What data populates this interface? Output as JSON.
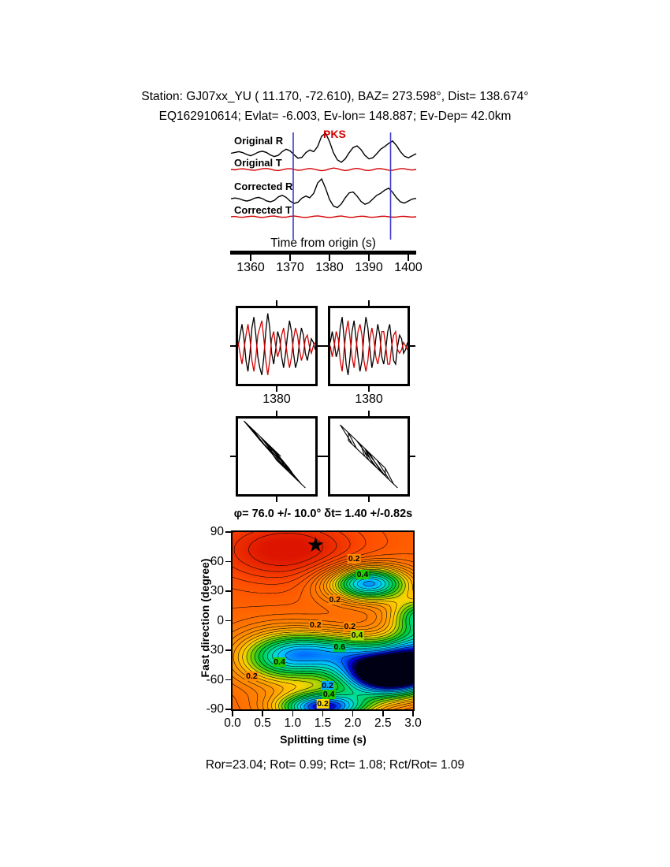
{
  "header": {
    "line1": "Station: GJ07xx_YU ( 11.170, -72.610), BAZ= 273.598°, Dist= 138.674°",
    "line2": "EQ162910614; Evlat= -6.003, Ev-lon= 148.887; Ev-Dep= 42.0km"
  },
  "footer": {
    "stats": "Ror=23.04; Rot= 0.99; Rct= 1.08; Rct/Rot= 1.09"
  },
  "chart_data": [
    {
      "id": "seismogram-traces",
      "type": "line",
      "phase": "PKS",
      "xlabel": "Time from origin (s)",
      "xlim": [
        1355,
        1402
      ],
      "xticks": [
        "1360",
        "1370",
        "1380",
        "1390",
        "1400"
      ],
      "window_lines": [
        1370.8,
        1395.5
      ],
      "series": [
        {
          "name": "Original R",
          "color": "#000000",
          "values": [
            0.02,
            0.06,
            0.1,
            0.05,
            -0.04,
            -0.1,
            -0.02,
            0.08,
            0.12,
            0.06,
            -0.06,
            -0.14,
            -0.08,
            0.1,
            0.22,
            0.14,
            -0.05,
            -0.22,
            -0.18,
            0.05,
            0.18,
            0.1,
            0.35,
            0.85,
            1.0,
            0.6,
            0.05,
            -0.3,
            -0.42,
            -0.25,
            0.05,
            0.3,
            0.38,
            0.2,
            -0.08,
            -0.25,
            -0.2,
            0.0,
            0.22,
            0.35,
            0.5,
            0.62,
            0.4,
            0.1,
            -0.12,
            -0.2,
            -0.1,
            0.0
          ]
        },
        {
          "name": "Original T",
          "color": "#d40000",
          "values": [
            0.0,
            -0.06,
            0.04,
            0.1,
            0.02,
            -0.08,
            -0.12,
            -0.02,
            0.1,
            0.14,
            0.04,
            -0.1,
            -0.16,
            -0.06,
            0.08,
            0.12,
            0.0,
            -0.12,
            -0.08,
            0.06,
            0.14,
            0.06,
            -0.08,
            -0.18,
            -0.1,
            0.08,
            0.2,
            0.12,
            -0.06,
            -0.16,
            -0.08,
            0.08,
            0.16,
            0.06,
            -0.1,
            -0.14,
            -0.04,
            0.1,
            0.12,
            0.02,
            -0.1,
            -0.12,
            0.0,
            0.12,
            0.1,
            -0.02,
            -0.08,
            0.0
          ]
        },
        {
          "name": "Corrected R",
          "color": "#000000",
          "values": [
            0.03,
            0.07,
            0.04,
            -0.03,
            -0.08,
            -0.03,
            0.06,
            0.1,
            0.04,
            -0.07,
            -0.12,
            -0.05,
            0.12,
            0.2,
            0.1,
            -0.08,
            -0.2,
            -0.14,
            0.06,
            0.16,
            0.08,
            0.3,
            0.8,
            1.0,
            0.55,
            0.0,
            -0.32,
            -0.4,
            -0.22,
            0.08,
            0.32,
            0.36,
            0.16,
            -0.1,
            -0.24,
            -0.16,
            0.02,
            0.2,
            0.3,
            0.45,
            0.55,
            0.35,
            0.08,
            -0.12,
            -0.18,
            -0.08,
            0.02,
            0.05
          ]
        },
        {
          "name": "Corrected T",
          "color": "#d40000",
          "values": [
            0.0,
            0.04,
            -0.04,
            -0.08,
            0.0,
            0.08,
            0.05,
            -0.05,
            -0.1,
            -0.02,
            0.08,
            0.1,
            0.0,
            -0.08,
            -0.06,
            0.05,
            0.1,
            0.03,
            -0.07,
            -0.1,
            -0.02,
            0.08,
            0.12,
            0.04,
            -0.06,
            -0.1,
            -0.04,
            0.06,
            0.1,
            0.02,
            -0.08,
            -0.08,
            0.02,
            0.08,
            0.06,
            -0.04,
            -0.08,
            -0.02,
            0.06,
            0.08,
            0.0,
            -0.06,
            -0.04,
            0.04,
            0.06,
            0.0,
            -0.05,
            0.0
          ]
        }
      ]
    },
    {
      "id": "fast-slow-window-pair",
      "type": "line",
      "panels": [
        {
          "xtick": "1380",
          "series": [
            {
              "color": "#000000",
              "values": [
                0.0,
                0.3,
                0.6,
                0.2,
                -0.4,
                -0.7,
                -0.2,
                0.5,
                0.8,
                0.3,
                -0.3,
                -0.6,
                -0.8,
                -0.3,
                0.4,
                0.9,
                0.5,
                -0.2,
                -0.5,
                -0.1,
                0.4,
                0.2,
                -0.3,
                -0.6,
                -0.2,
                0.3,
                0.7,
                0.4,
                -0.2,
                -0.6,
                -0.4,
                0.1,
                0.5,
                0.3,
                -0.2,
                -0.4,
                -0.1,
                0.2,
                0.1,
                -0.1
              ]
            },
            {
              "color": "#d40000",
              "values": [
                0.1,
                -0.2,
                -0.5,
                -0.1,
                0.3,
                0.6,
                0.2,
                -0.4,
                -0.7,
                -0.3,
                0.3,
                0.5,
                0.7,
                0.2,
                -0.4,
                -0.8,
                -0.4,
                0.2,
                0.4,
                0.0,
                -0.3,
                -0.1,
                0.3,
                0.5,
                0.1,
                -0.3,
                -0.6,
                -0.3,
                0.2,
                0.5,
                0.3,
                -0.1,
                -0.4,
                -0.2,
                0.2,
                0.3,
                0.0,
                -0.2,
                0.0,
                0.1
              ]
            }
          ]
        },
        {
          "xtick": "1380",
          "series": [
            {
              "color": "#000000",
              "values": [
                0.1,
                0.4,
                0.1,
                -0.3,
                -0.1,
                0.5,
                0.8,
                0.2,
                -0.5,
                -0.8,
                -0.3,
                0.4,
                0.7,
                0.2,
                -0.3,
                -0.7,
                -0.4,
                0.3,
                0.8,
                0.5,
                -0.1,
                -0.6,
                -0.3,
                0.2,
                0.6,
                0.3,
                -0.3,
                -0.5,
                -0.1,
                0.4,
                0.6,
                0.1,
                -0.4,
                -0.5,
                0.0,
                0.3,
                0.2,
                -0.2,
                -0.1,
                0.1
              ]
            },
            {
              "color": "#d40000",
              "values": [
                0.0,
                -0.3,
                0.0,
                0.4,
                0.2,
                -0.4,
                -0.7,
                -0.1,
                0.4,
                0.7,
                0.2,
                -0.3,
                -0.6,
                -0.1,
                0.4,
                0.6,
                0.3,
                -0.4,
                -0.7,
                -0.4,
                0.2,
                0.5,
                0.2,
                -0.3,
                -0.5,
                -0.2,
                0.4,
                0.4,
                0.0,
                -0.5,
                -0.5,
                0.0,
                0.3,
                0.4,
                -0.1,
                -0.2,
                -0.1,
                0.1,
                0.0,
                -0.1
              ]
            }
          ]
        }
      ]
    },
    {
      "id": "particle-motion",
      "type": "line",
      "note": "particle motion: T component vs R component of each window panel"
    },
    {
      "id": "splitting-misfit-surface",
      "type": "contour",
      "title": "φ= 76.0 +/- 10.0° δt= 1.40 +/-0.82s",
      "xlabel": "Splitting time (s)",
      "ylabel": "Fast direction (degree)",
      "xlim": [
        0,
        3
      ],
      "ylim": [
        -90,
        90
      ],
      "xticks": [
        "0.0",
        "0.5",
        "1.0",
        "1.5",
        "2.0",
        "2.5",
        "3.0"
      ],
      "yticks": [
        "90",
        "60",
        "30",
        "0",
        "-30",
        "-60",
        "-90"
      ],
      "best": {
        "phi": 76.0,
        "phi_err": 10.0,
        "dt": 1.4,
        "dt_err": 0.82
      },
      "star_marker": "★",
      "contour_interval": 0.05,
      "labels": [
        {
          "text": "0.2",
          "x": 2.02,
          "y": 63,
          "bg": "#ff8800"
        },
        {
          "text": "0.4",
          "x": 2.16,
          "y": 47,
          "bg": "#22cc00"
        },
        {
          "text": "0.2",
          "x": 1.7,
          "y": 21,
          "bg": "#ff8800"
        },
        {
          "text": "0.2",
          "x": 1.38,
          "y": -4,
          "bg": "#ff8800"
        },
        {
          "text": "0.2",
          "x": 1.95,
          "y": -6,
          "bg": "#ff8800"
        },
        {
          "text": "0.4",
          "x": 2.07,
          "y": -15,
          "bg": "#aadd00"
        },
        {
          "text": "0.6",
          "x": 1.78,
          "y": -27,
          "bg": "#00cc44"
        },
        {
          "text": "0.4",
          "x": 0.78,
          "y": -42,
          "bg": "#22cc00"
        },
        {
          "text": "0.2",
          "x": 0.32,
          "y": -56,
          "bg": "#ff8800"
        },
        {
          "text": "0.2",
          "x": 1.58,
          "y": -66,
          "bg": "#00aaff"
        },
        {
          "text": "0.4",
          "x": 1.6,
          "y": -75,
          "bg": "#22cc00"
        },
        {
          "text": "0.2",
          "x": 1.5,
          "y": -84,
          "bg": "#ffd800"
        }
      ],
      "palette": [
        [
          0.0,
          "#000014"
        ],
        [
          0.08,
          "#0000dc"
        ],
        [
          0.16,
          "#0078ff"
        ],
        [
          0.24,
          "#00d2ff"
        ],
        [
          0.34,
          "#00dc96"
        ],
        [
          0.44,
          "#00c832"
        ],
        [
          0.54,
          "#78d200"
        ],
        [
          0.64,
          "#ffd200"
        ],
        [
          0.74,
          "#ff9e00"
        ],
        [
          0.9,
          "#ff7800"
        ],
        [
          1.1,
          "#ff4b00"
        ],
        [
          1.3,
          "#dc1400"
        ]
      ],
      "surface_model": {
        "base": 1.0,
        "bumps": [
          {
            "amp": 0.32,
            "cx": 0.9,
            "cy": 72,
            "sx": 0.9,
            "sy": 24
          },
          {
            "amp": -0.85,
            "cx": 2.25,
            "cy": 38,
            "sx": 0.5,
            "sy": 13
          },
          {
            "amp": -0.62,
            "cx": 0.85,
            "cy": -38,
            "sx": 0.6,
            "sy": 20
          },
          {
            "amp": -0.45,
            "cx": 1.8,
            "cy": -30,
            "sx": 0.7,
            "sy": 14
          },
          {
            "amp": -1.2,
            "cx": 2.6,
            "cy": -55,
            "sx": 0.6,
            "sy": 16
          },
          {
            "amp": -0.6,
            "cx": 3.2,
            "cy": -28,
            "sx": 0.45,
            "sy": 22
          },
          {
            "amp": -0.9,
            "cx": 1.5,
            "cy": -88,
            "sx": 0.55,
            "sy": 11
          },
          {
            "amp": -0.5,
            "cx": 3.2,
            "cy": 6,
            "sx": 0.4,
            "sy": 12
          }
        ]
      }
    }
  ]
}
